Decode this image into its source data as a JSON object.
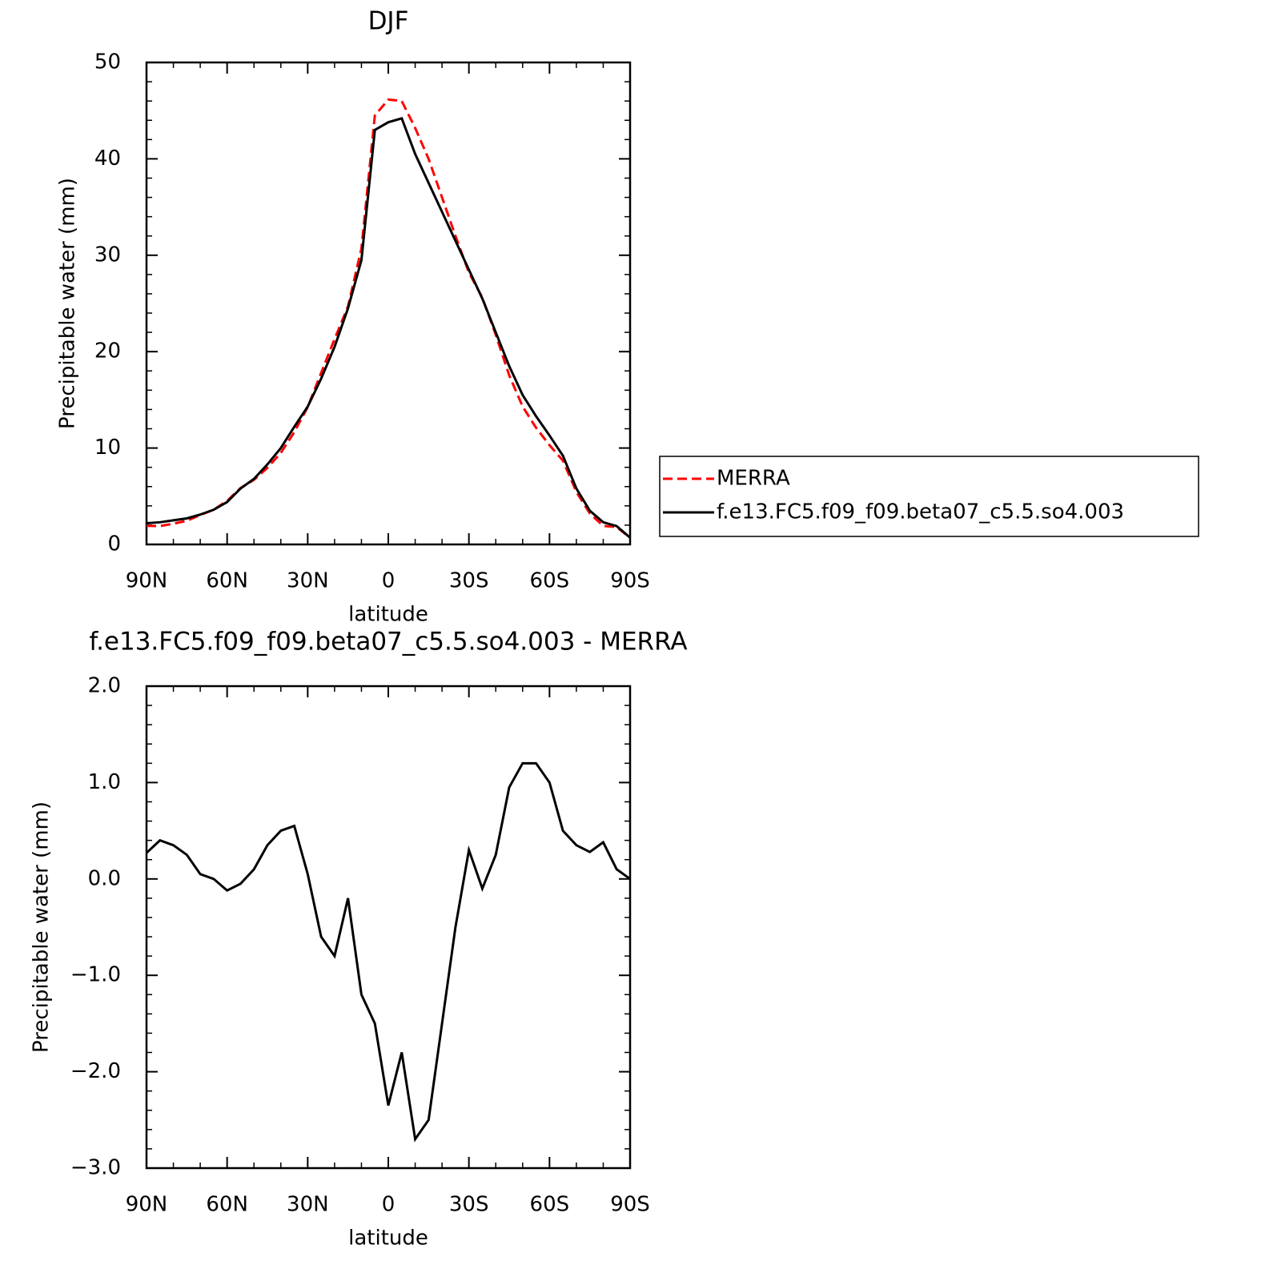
{
  "chart_data": [
    {
      "type": "line",
      "title": "DJF",
      "xlabel": "latitude",
      "ylabel": "Precipitable water (mm)",
      "x": [
        90,
        85,
        80,
        75,
        70,
        65,
        60,
        55,
        50,
        45,
        40,
        35,
        30,
        25,
        20,
        15,
        10,
        5,
        0,
        -5,
        -10,
        -15,
        -20,
        -25,
        -30,
        -35,
        -40,
        -45,
        -50,
        -55,
        -60,
        -65,
        -70,
        -75,
        -80,
        -85,
        -90
      ],
      "series": [
        {
          "name": "MERRA",
          "color": "#ff0000",
          "linestyle": "dashed",
          "values": [
            1.93,
            1.9,
            2.15,
            2.45,
            3.05,
            3.6,
            4.52,
            5.85,
            6.7,
            7.95,
            9.5,
            11.65,
            14.25,
            17.8,
            21.3,
            24.7,
            30.7,
            44.5,
            46.15,
            46.0,
            43.2,
            40.0,
            36.0,
            32.0,
            28.2,
            25.6,
            21.75,
            17.55,
            14.3,
            12.1,
            10.3,
            8.7,
            5.45,
            3.22,
            1.92,
            1.8,
            0.7
          ]
        },
        {
          "name": "f.e13.FC5.f09_f09.beta07_c5.5.so4.003",
          "color": "#000000",
          "linestyle": "solid",
          "values": [
            2.2,
            2.3,
            2.5,
            2.7,
            3.1,
            3.6,
            4.4,
            5.8,
            6.8,
            8.3,
            10.0,
            12.2,
            14.3,
            17.2,
            20.5,
            24.5,
            29.5,
            43.0,
            43.8,
            44.2,
            40.5,
            37.5,
            34.5,
            31.5,
            28.5,
            25.5,
            22.0,
            18.5,
            15.5,
            13.3,
            11.3,
            9.2,
            5.8,
            3.5,
            2.3,
            1.9,
            0.7
          ]
        }
      ],
      "xlim": [
        90,
        -90
      ],
      "xticks": [
        {
          "value": 90,
          "label": "90N"
        },
        {
          "value": 60,
          "label": "60N"
        },
        {
          "value": 30,
          "label": "30N"
        },
        0,
        {
          "value": -30,
          "label": "30S"
        },
        {
          "value": -60,
          "label": "60S"
        },
        {
          "value": -90,
          "label": "90S"
        }
      ],
      "ylim": [
        0,
        50
      ],
      "yticks": [
        0,
        10,
        20,
        30,
        40,
        50
      ],
      "grid": false,
      "legend": "right"
    },
    {
      "type": "line",
      "title": "f.e13.FC5.f09_f09.beta07_c5.5.so4.003 - MERRA",
      "xlabel": "latitude",
      "ylabel": "Precipitable water (mm)",
      "x": [
        90,
        85,
        80,
        75,
        70,
        65,
        60,
        55,
        50,
        45,
        40,
        35,
        30,
        25,
        20,
        15,
        10,
        5,
        0,
        -5,
        -10,
        -15,
        -20,
        -25,
        -30,
        -35,
        -40,
        -45,
        -50,
        -55,
        -60,
        -65,
        -70,
        -75,
        -80,
        -85,
        -90
      ],
      "color": "#000000",
      "values": [
        0.27,
        0.4,
        0.35,
        0.25,
        0.05,
        0.0,
        -0.12,
        -0.05,
        0.1,
        0.35,
        0.5,
        0.55,
        0.05,
        -0.6,
        -0.8,
        -0.2,
        -1.2,
        -1.5,
        -2.35,
        -1.8,
        -2.7,
        -2.5,
        -1.5,
        -0.5,
        0.3,
        -0.1,
        0.25,
        0.95,
        1.2,
        1.2,
        1.0,
        0.5,
        0.35,
        0.28,
        0.38,
        0.1,
        0.0
      ],
      "xlim": [
        90,
        -90
      ],
      "xticks": [
        {
          "value": 90,
          "label": "90N"
        },
        {
          "value": 60,
          "label": "60N"
        },
        {
          "value": 30,
          "label": "30N"
        },
        0,
        {
          "value": -30,
          "label": "30S"
        },
        {
          "value": -60,
          "label": "60S"
        },
        {
          "value": -90,
          "label": "90S"
        }
      ],
      "ylim": [
        -3,
        2
      ],
      "yticks": [
        {
          "value": -3,
          "label": "−3.0"
        },
        {
          "value": -2,
          "label": "−2.0"
        },
        {
          "value": -1,
          "label": "−1.0"
        },
        {
          "value": 0,
          "label": "0.0"
        },
        {
          "value": 1,
          "label": "1.0"
        },
        {
          "value": 2,
          "label": "2.0"
        }
      ],
      "grid": false
    }
  ]
}
